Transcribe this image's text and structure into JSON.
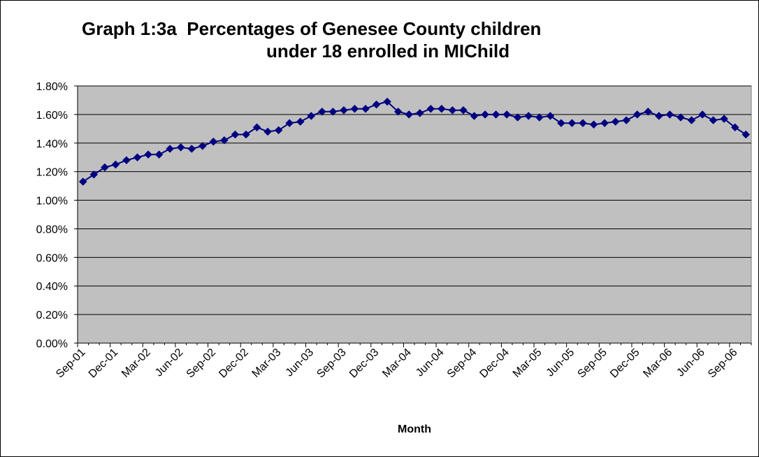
{
  "chart_data": {
    "type": "line",
    "title_line_1": "Graph 1:3a  Percentages of Genesee County children",
    "title_line_2": "under 18 enrolled in MIChild",
    "xlabel": "Month",
    "ylabel": "",
    "ylim": [
      0,
      1.8
    ],
    "y_tick_values": [
      0,
      0.2,
      0.4,
      0.6,
      0.8,
      1.0,
      1.2,
      1.4,
      1.6,
      1.8
    ],
    "y_tick_labels": [
      "0.00%",
      "0.20%",
      "0.40%",
      "0.60%",
      "0.80%",
      "1.00%",
      "1.20%",
      "1.40%",
      "1.60%",
      "1.80%"
    ],
    "x_tick_labels": [
      "Sep-01",
      "Dec-01",
      "Mar-02",
      "Jun-02",
      "Sep-02",
      "Dec-02",
      "Mar-03",
      "Jun-03",
      "Sep-03",
      "Dec-03",
      "Mar-04",
      "Jun-04",
      "Sep-04",
      "Dec-04",
      "Mar-05",
      "Jun-05",
      "Sep-05",
      "Dec-05",
      "Mar-06",
      "Jun-06",
      "Sep-06"
    ],
    "x_tick_every": 3,
    "x_start": "Sep-01",
    "grid": true,
    "plot_background": "#c0c0c0",
    "series": [
      {
        "color": "#000080",
        "marker": "diamond",
        "values": [
          1.13,
          1.18,
          1.23,
          1.25,
          1.28,
          1.3,
          1.32,
          1.32,
          1.36,
          1.37,
          1.36,
          1.38,
          1.41,
          1.42,
          1.46,
          1.46,
          1.51,
          1.48,
          1.49,
          1.54,
          1.55,
          1.59,
          1.62,
          1.62,
          1.63,
          1.64,
          1.64,
          1.67,
          1.69,
          1.62,
          1.6,
          1.61,
          1.64,
          1.64,
          1.63,
          1.63,
          1.59,
          1.6,
          1.6,
          1.6,
          1.58,
          1.59,
          1.58,
          1.59,
          1.54,
          1.54,
          1.54,
          1.53,
          1.54,
          1.55,
          1.56,
          1.6,
          1.62,
          1.59,
          1.6,
          1.58,
          1.56,
          1.6,
          1.56,
          1.57,
          1.51,
          1.46
        ]
      }
    ]
  }
}
